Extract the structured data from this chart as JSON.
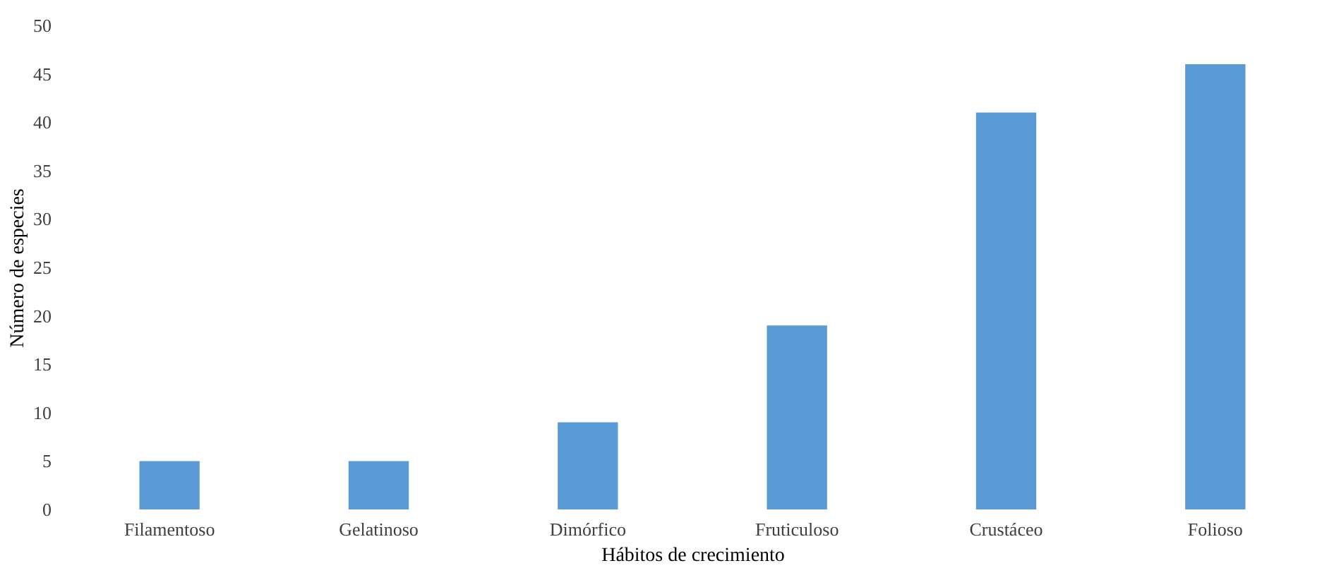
{
  "chart_data": {
    "type": "bar",
    "xlabel": "Hábitos de crecimiento",
    "ylabel": "Número de especies",
    "categories": [
      "Filamentoso",
      "Gelatinoso",
      "Dimórfico",
      "Fruticuloso",
      "Crustáceo",
      "Folioso"
    ],
    "values": [
      5,
      5,
      9,
      19,
      41,
      46
    ],
    "color": "#5b9bd5",
    "ylim": [
      0,
      50
    ],
    "yticks": [
      0,
      5,
      10,
      15,
      20,
      25,
      30,
      35,
      40,
      45,
      50
    ],
    "grid": false
  }
}
